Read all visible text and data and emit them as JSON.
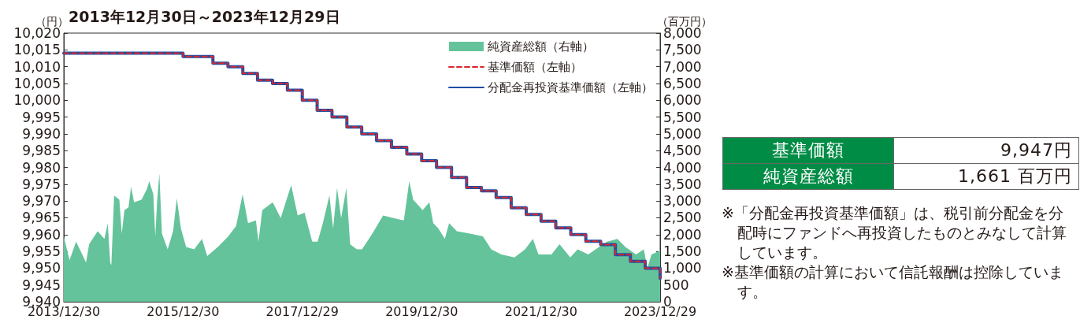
{
  "chart_data": {
    "type": "step",
    "title": "2013年12月30日～2023年12月29日",
    "ylabel": "（円）",
    "y2label": "（百万円）",
    "xlim": [
      "2013-12-30",
      "2023-12-29"
    ],
    "xticks": [
      {
        "value": "2013-12-30",
        "label": "2013/12/30"
      },
      {
        "value": "2015-12-30",
        "label": "2015/12/30"
      },
      {
        "value": "2017-12-29",
        "label": "2017/12/29"
      },
      {
        "value": "2019-12-30",
        "label": "2019/12/30"
      },
      {
        "value": "2021-12-30",
        "label": "2021/12/30"
      },
      {
        "value": "2023-12-29",
        "label": "2023/12/29"
      }
    ],
    "ylim": [
      9940,
      10020
    ],
    "yticks": [
      {
        "value": 9940,
        "label": "9,940"
      },
      {
        "value": 9945,
        "label": "9,945"
      },
      {
        "value": 9950,
        "label": "9,950"
      },
      {
        "value": 9955,
        "label": "9,955"
      },
      {
        "value": 9960,
        "label": "9,960"
      },
      {
        "value": 9965,
        "label": "9,965"
      },
      {
        "value": 9970,
        "label": "9,970"
      },
      {
        "value": 9975,
        "label": "9,975"
      },
      {
        "value": 9980,
        "label": "9,980"
      },
      {
        "value": 9985,
        "label": "9,985"
      },
      {
        "value": 9990,
        "label": "9,990"
      },
      {
        "value": 9995,
        "label": "9,995"
      },
      {
        "value": 10000,
        "label": "10,000"
      },
      {
        "value": 10005,
        "label": "10,005"
      },
      {
        "value": 10010,
        "label": "10,010"
      },
      {
        "value": 10015,
        "label": "10,015"
      },
      {
        "value": 10020,
        "label": "10,020"
      }
    ],
    "y2lim": [
      0,
      8000
    ],
    "y2ticks": [
      0,
      500,
      {
        "value": 1000,
        "label": "1,000"
      },
      {
        "value": 1500,
        "label": "1,500"
      },
      {
        "value": 2000,
        "label": "2,000"
      },
      {
        "value": 2500,
        "label": "2,500"
      },
      {
        "value": 3000,
        "label": "3,000"
      },
      {
        "value": 3500,
        "label": "3,500"
      },
      {
        "value": 4000,
        "label": "4,000"
      },
      {
        "value": 4500,
        "label": "4,500"
      },
      {
        "value": 5000,
        "label": "5,000"
      },
      {
        "value": 5500,
        "label": "5,500"
      },
      {
        "value": 6000,
        "label": "6,000"
      },
      {
        "value": 6500,
        "label": "6,500"
      },
      {
        "value": 7000,
        "label": "7,000"
      },
      {
        "value": 7500,
        "label": "7,500"
      },
      {
        "value": 8000,
        "label": "8,000"
      }
    ],
    "grid": false,
    "legend": "top right",
    "series": [
      {
        "name": "純資産総額（右軸）",
        "type": "area",
        "axis": "y2",
        "color": "#64c39b",
        "x": [
          "2013-12-30",
          "2014-02-03",
          "2014-03-15",
          "2014-04-15",
          "2014-05-15",
          "2014-06-03",
          "2014-07-25",
          "2014-09-05",
          "2014-09-25",
          "2014-10-10",
          "2014-10-17",
          "2014-11-03",
          "2014-12-05",
          "2014-12-20",
          "2015-01-05",
          "2015-01-30",
          "2015-02-15",
          "2015-03-05",
          "2015-04-20",
          "2015-05-22",
          "2015-06-06",
          "2015-07-01",
          "2015-07-13",
          "2015-07-25",
          "2015-08-07",
          "2015-08-23",
          "2015-09-27",
          "2015-10-30",
          "2015-11-22",
          "2015-12-17",
          "2016-01-18",
          "2016-03-07",
          "2016-04-24",
          "2016-05-26",
          "2016-07-30",
          "2016-10-02",
          "2016-11-19",
          "2016-12-29",
          "2017-01-31",
          "2017-03-20",
          "2017-04-05",
          "2017-04-28",
          "2017-07-01",
          "2017-08-19",
          "2017-10-22",
          "2017-12-01",
          "2018-01-12",
          "2018-02-28",
          "2018-04-02",
          "2018-05-04",
          "2018-06-13",
          "2018-07-06",
          "2018-07-30",
          "2018-08-24",
          "2018-09-25",
          "2018-10-18",
          "2018-11-28",
          "2018-12-30",
          "2019-03-03",
          "2019-05-08",
          "2019-07-09",
          "2019-09-12",
          "2019-10-15",
          "2019-11-08",
          "2020-01-05",
          "2020-02-15",
          "2020-03-10",
          "2020-04-10",
          "2020-05-20",
          "2020-06-15",
          "2020-08-01",
          "2020-10-20",
          "2021-01-08",
          "2021-02-28",
          "2021-05-01",
          "2021-07-20",
          "2021-09-23",
          "2021-11-10",
          "2021-12-14",
          "2022-03-04",
          "2022-04-22",
          "2022-06-27",
          "2022-08-11",
          "2022-10-15",
          "2022-12-20",
          "2023-02-06",
          "2023-04-12",
          "2023-05-30",
          "2023-08-04",
          "2023-09-20",
          "2023-10-12",
          "2023-11-06",
          "2023-12-29"
        ],
        "values": [
          1950,
          1240,
          1790,
          1480,
          1170,
          1710,
          2100,
          1870,
          2340,
          1170,
          1090,
          3160,
          3040,
          2030,
          2730,
          2810,
          3430,
          2960,
          3040,
          3350,
          3590,
          3200,
          1950,
          3040,
          3820,
          2030,
          1560,
          2100,
          3080,
          2180,
          1630,
          1560,
          1870,
          1360,
          1630,
          1950,
          2260,
          3200,
          2340,
          2420,
          1790,
          2730,
          2960,
          2490,
          3470,
          2570,
          2650,
          1790,
          1790,
          2340,
          3160,
          2180,
          3390,
          2490,
          3390,
          1710,
          1560,
          1560,
          2030,
          2570,
          2490,
          2420,
          3590,
          3040,
          2730,
          2960,
          2340,
          2180,
          1870,
          2340,
          2100,
          2030,
          1950,
          1560,
          1410,
          1320,
          1560,
          1870,
          1410,
          1410,
          1710,
          1320,
          1560,
          1410,
          1630,
          1790,
          1870,
          1630,
          1410,
          1560,
          1010,
          1410,
          1520
        ]
      },
      {
        "name": "基準価額（左軸）",
        "color": "#d7282f",
        "line_style": "dashed",
        "x": [
          "2013-12-30",
          "2014-06-30",
          "2015-06-30",
          "2015-12-30",
          "2016-03-30",
          "2016-06-30",
          "2016-09-30",
          "2016-12-30",
          "2017-03-30",
          "2017-06-30",
          "2017-09-29",
          "2017-12-29",
          "2018-03-30",
          "2018-06-29",
          "2018-09-28",
          "2018-12-28",
          "2019-03-29",
          "2019-06-28",
          "2019-09-30",
          "2019-12-30",
          "2020-03-30",
          "2020-06-30",
          "2020-09-30",
          "2020-12-30",
          "2021-03-30",
          "2021-06-30",
          "2021-09-30",
          "2021-12-30",
          "2022-03-30",
          "2022-06-30",
          "2022-09-30",
          "2022-12-30",
          "2023-03-30",
          "2023-06-30",
          "2023-09-29",
          "2023-12-29"
        ],
        "values": [
          10014,
          10014,
          10014,
          10013,
          10013,
          10011,
          10010,
          10008,
          10006,
          10005,
          10003,
          10000,
          9997,
          9995,
          9992,
          9990,
          9988,
          9986,
          9984,
          9982,
          9980,
          9977,
          9974,
          9973,
          9971,
          9968,
          9966,
          9964,
          9962,
          9960,
          9958,
          9957,
          9954,
          9952,
          9950,
          9947
        ]
      },
      {
        "name": "分配金再投資基準価額（左軸）",
        "color": "#1f4ea3",
        "line_style": "solid",
        "x": [
          "2013-12-30",
          "2014-06-30",
          "2015-06-30",
          "2015-12-30",
          "2016-03-30",
          "2016-06-30",
          "2016-09-30",
          "2016-12-30",
          "2017-03-30",
          "2017-06-30",
          "2017-09-29",
          "2017-12-29",
          "2018-03-30",
          "2018-06-29",
          "2018-09-28",
          "2018-12-28",
          "2019-03-29",
          "2019-06-28",
          "2019-09-30",
          "2019-12-30",
          "2020-03-30",
          "2020-06-30",
          "2020-09-30",
          "2020-12-30",
          "2021-03-30",
          "2021-06-30",
          "2021-09-30",
          "2021-12-30",
          "2022-03-30",
          "2022-06-30",
          "2022-09-30",
          "2022-12-30",
          "2023-03-30",
          "2023-06-30",
          "2023-09-29",
          "2023-12-29"
        ],
        "values": [
          10014,
          10014,
          10014,
          10013,
          10013,
          10011,
          10010,
          10008,
          10006,
          10005,
          10003,
          10000,
          9997,
          9995,
          9992,
          9990,
          9988,
          9986,
          9984,
          9982,
          9980,
          9977,
          9974,
          9973,
          9971,
          9968,
          9966,
          9964,
          9962,
          9960,
          9958,
          9957,
          9954,
          9952,
          9950,
          9947
        ]
      }
    ],
    "annotations": [
      "基準価額",
      "9,947円",
      "純資産総額",
      "1,661 百万円",
      "※「分配金再投資基準価額」は、税引前分配金を分配時にファンドへ再投資したものとみなして計算しています。",
      "※基準価額の計算において信託報酬は控除しています。"
    ]
  }
}
